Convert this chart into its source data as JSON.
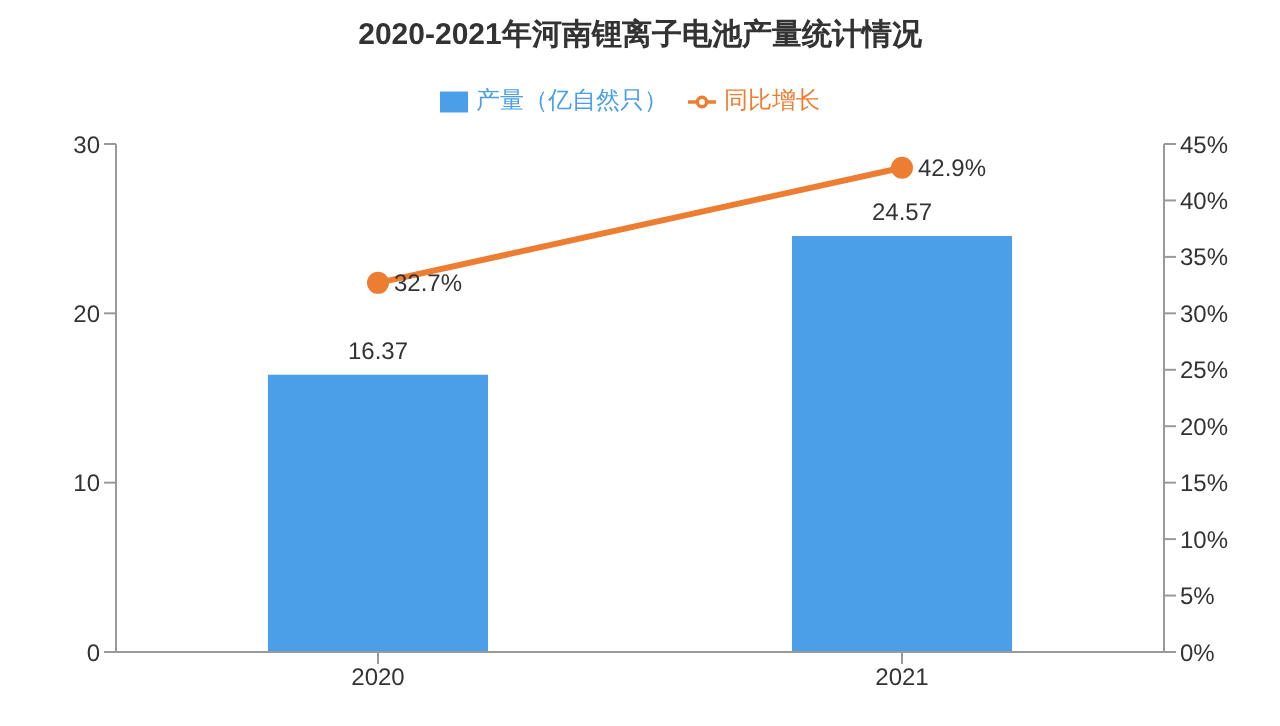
{
  "chart_data": {
    "type": "bar",
    "title": "2020-2021年河南锂离子电池产量统计情况",
    "categories": [
      "2020",
      "2021"
    ],
    "series": [
      {
        "name": "产量（亿自然只）",
        "color": "#4a9fe8",
        "values": [
          16.37,
          24.57
        ],
        "value_labels": [
          "16.37",
          "24.57"
        ]
      },
      {
        "name": "同比增长",
        "type": "line",
        "axis": "y2",
        "color": "#ed7d31",
        "values": [
          32.7,
          42.9
        ],
        "value_labels": [
          "32.7%",
          "42.9%"
        ]
      }
    ],
    "ylim": [
      0,
      30
    ],
    "yticks": [
      0,
      10,
      20,
      30
    ],
    "y2lim": [
      0,
      45
    ],
    "y2ticks": [
      {
        "value": 0,
        "label": "0%"
      },
      {
        "value": 5,
        "label": "5%"
      },
      {
        "value": 10,
        "label": "10%"
      },
      {
        "value": 15,
        "label": "15%"
      },
      {
        "value": 20,
        "label": "20%"
      },
      {
        "value": 25,
        "label": "25%"
      },
      {
        "value": 30,
        "label": "30%"
      },
      {
        "value": 35,
        "label": "35%"
      },
      {
        "value": 40,
        "label": "40%"
      },
      {
        "value": 45,
        "label": "45%"
      }
    ],
    "grid": false,
    "legend": "top",
    "marker": "circle",
    "line_style": "solid"
  }
}
